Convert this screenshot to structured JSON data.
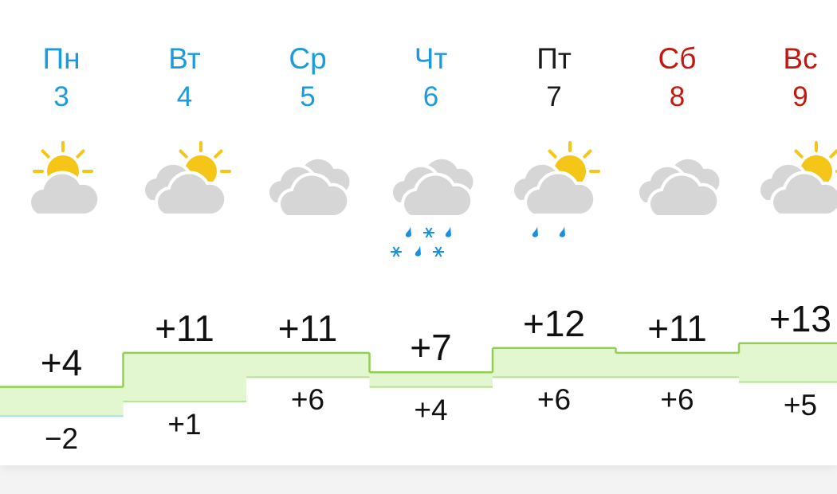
{
  "colors": {
    "weekday": "#1a9be0",
    "friday": "#1a1a1a",
    "weekend": "#c4180f",
    "fill": "#e2f6d0",
    "line": "#8fd14f",
    "cold_line": "#a8dcef"
  },
  "days": [
    {
      "name": "Пн",
      "date": "3",
      "kind": "weekday",
      "icon": "sun-behind-cloud",
      "precip": "none",
      "high": "+4",
      "low": "−2",
      "high_value": 4,
      "low_value": -2
    },
    {
      "name": "Вт",
      "date": "4",
      "kind": "weekday",
      "icon": "partly-cloudy",
      "precip": "none",
      "high": "+11",
      "low": "+1",
      "high_value": 11,
      "low_value": 1
    },
    {
      "name": "Ср",
      "date": "5",
      "kind": "weekday",
      "icon": "cloudy",
      "precip": "none",
      "high": "+11",
      "low": "+6",
      "high_value": 11,
      "low_value": 6
    },
    {
      "name": "Чт",
      "date": "6",
      "kind": "weekday",
      "icon": "cloudy",
      "precip": "rain-and-snow",
      "high": "+7",
      "low": "+4",
      "high_value": 7,
      "low_value": 4
    },
    {
      "name": "Пт",
      "date": "7",
      "kind": "friday",
      "icon": "partly-cloudy",
      "precip": "rain",
      "high": "+12",
      "low": "+6",
      "high_value": 12,
      "low_value": 6
    },
    {
      "name": "Сб",
      "date": "8",
      "kind": "weekend",
      "icon": "cloudy",
      "precip": "none",
      "high": "+11",
      "low": "+6",
      "high_value": 11,
      "low_value": 6
    },
    {
      "name": "Вс",
      "date": "9",
      "kind": "weekend",
      "icon": "partly-cloudy",
      "precip": "none",
      "high": "+13",
      "low": "+5",
      "high_value": 13,
      "low_value": 5
    }
  ]
}
